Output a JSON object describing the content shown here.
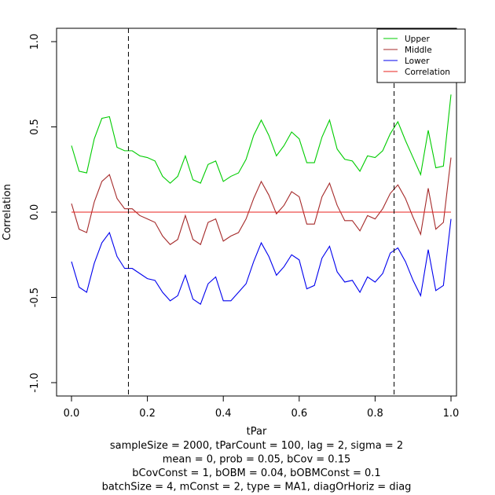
{
  "chart_data": {
    "type": "line",
    "xlabel": "tPar",
    "ylabel": "Correlation",
    "xlim": [
      0,
      1
    ],
    "ylim": [
      -1,
      1
    ],
    "x_ticks": [
      0.0,
      0.2,
      0.4,
      0.6,
      0.8,
      1.0
    ],
    "x_tick_labels": [
      "0.0",
      "0.2",
      "0.4",
      "0.6",
      "0.8",
      "1.0"
    ],
    "y_ticks": [
      -1.0,
      -0.5,
      0.0,
      0.5,
      1.0
    ],
    "y_tick_labels": [
      "-1.0",
      "-0.5",
      "0.0",
      "0.5",
      "1.0"
    ],
    "vlines": [
      0.15,
      0.85
    ],
    "legend_position": "top-right",
    "caption_lines": [
      "sampleSize = 2000, tParCount = 100, lag = 2, sigma = 2",
      "mean = 0, prob = 0.05, bCov = 0.15",
      "bCovConst = 1, bOBM = 0.04, bOBMConst = 0.1",
      "batchSize = 4, mConst = 2, type = MA1, diagOrHoriz = diag"
    ],
    "series": [
      {
        "name": "Upper",
        "color": "#00cc00",
        "x": [
          0,
          0.02,
          0.04,
          0.06,
          0.08,
          0.1,
          0.12,
          0.14,
          0.16,
          0.18,
          0.2,
          0.22,
          0.24,
          0.26,
          0.28,
          0.3,
          0.32,
          0.34,
          0.36,
          0.38,
          0.4,
          0.42,
          0.44,
          0.46,
          0.48,
          0.5,
          0.52,
          0.54,
          0.56,
          0.58,
          0.6,
          0.62,
          0.64,
          0.66,
          0.68,
          0.7,
          0.72,
          0.74,
          0.76,
          0.78,
          0.8,
          0.82,
          0.84,
          0.86,
          0.88,
          0.9,
          0.92,
          0.94,
          0.96,
          0.98,
          1.0
        ],
        "y": [
          0.39,
          0.24,
          0.23,
          0.43,
          0.55,
          0.56,
          0.38,
          0.36,
          0.36,
          0.33,
          0.32,
          0.3,
          0.21,
          0.17,
          0.21,
          0.33,
          0.19,
          0.17,
          0.28,
          0.3,
          0.18,
          0.21,
          0.23,
          0.31,
          0.45,
          0.54,
          0.45,
          0.33,
          0.39,
          0.47,
          0.43,
          0.29,
          0.29,
          0.44,
          0.54,
          0.37,
          0.31,
          0.3,
          0.24,
          0.33,
          0.32,
          0.36,
          0.46,
          0.53,
          0.42,
          0.32,
          0.22,
          0.48,
          0.26,
          0.27,
          0.69
        ]
      },
      {
        "name": "Middle",
        "color": "#a52a2a",
        "x": [
          0,
          0.02,
          0.04,
          0.06,
          0.08,
          0.1,
          0.12,
          0.14,
          0.16,
          0.18,
          0.2,
          0.22,
          0.24,
          0.26,
          0.28,
          0.3,
          0.32,
          0.34,
          0.36,
          0.38,
          0.4,
          0.42,
          0.44,
          0.46,
          0.48,
          0.5,
          0.52,
          0.54,
          0.56,
          0.58,
          0.6,
          0.62,
          0.64,
          0.66,
          0.68,
          0.7,
          0.72,
          0.74,
          0.76,
          0.78,
          0.8,
          0.82,
          0.84,
          0.86,
          0.88,
          0.9,
          0.92,
          0.94,
          0.96,
          0.98,
          1.0
        ],
        "y": [
          0.05,
          -0.1,
          -0.12,
          0.06,
          0.18,
          0.22,
          0.08,
          0.02,
          0.02,
          -0.02,
          -0.04,
          -0.06,
          -0.14,
          -0.19,
          -0.16,
          -0.02,
          -0.16,
          -0.19,
          -0.06,
          -0.04,
          -0.17,
          -0.14,
          -0.12,
          -0.04,
          0.08,
          0.18,
          0.1,
          -0.01,
          0.04,
          0.12,
          0.09,
          -0.07,
          -0.07,
          0.09,
          0.17,
          0.04,
          -0.05,
          -0.05,
          -0.11,
          -0.02,
          -0.04,
          0.02,
          0.11,
          0.16,
          0.08,
          -0.03,
          -0.13,
          0.14,
          -0.1,
          -0.06,
          0.32
        ]
      },
      {
        "name": "Lower",
        "color": "#0000ee",
        "x": [
          0,
          0.02,
          0.04,
          0.06,
          0.08,
          0.1,
          0.12,
          0.14,
          0.16,
          0.18,
          0.2,
          0.22,
          0.24,
          0.26,
          0.28,
          0.3,
          0.32,
          0.34,
          0.36,
          0.38,
          0.4,
          0.42,
          0.44,
          0.46,
          0.48,
          0.5,
          0.52,
          0.54,
          0.56,
          0.58,
          0.6,
          0.62,
          0.64,
          0.66,
          0.68,
          0.7,
          0.72,
          0.74,
          0.76,
          0.78,
          0.8,
          0.82,
          0.84,
          0.86,
          0.88,
          0.9,
          0.92,
          0.94,
          0.96,
          0.98,
          1.0
        ],
        "y": [
          -0.29,
          -0.44,
          -0.47,
          -0.3,
          -0.18,
          -0.12,
          -0.26,
          -0.33,
          -0.33,
          -0.36,
          -0.39,
          -0.4,
          -0.47,
          -0.52,
          -0.49,
          -0.37,
          -0.51,
          -0.54,
          -0.42,
          -0.38,
          -0.52,
          -0.52,
          -0.47,
          -0.42,
          -0.29,
          -0.18,
          -0.26,
          -0.37,
          -0.32,
          -0.25,
          -0.28,
          -0.45,
          -0.43,
          -0.27,
          -0.2,
          -0.35,
          -0.41,
          -0.4,
          -0.47,
          -0.38,
          -0.41,
          -0.36,
          -0.24,
          -0.21,
          -0.29,
          -0.4,
          -0.49,
          -0.22,
          -0.46,
          -0.43,
          -0.04
        ]
      },
      {
        "name": "Correlation",
        "color": "#e8211e",
        "x": [
          0,
          1
        ],
        "y": [
          0,
          0
        ]
      }
    ]
  }
}
